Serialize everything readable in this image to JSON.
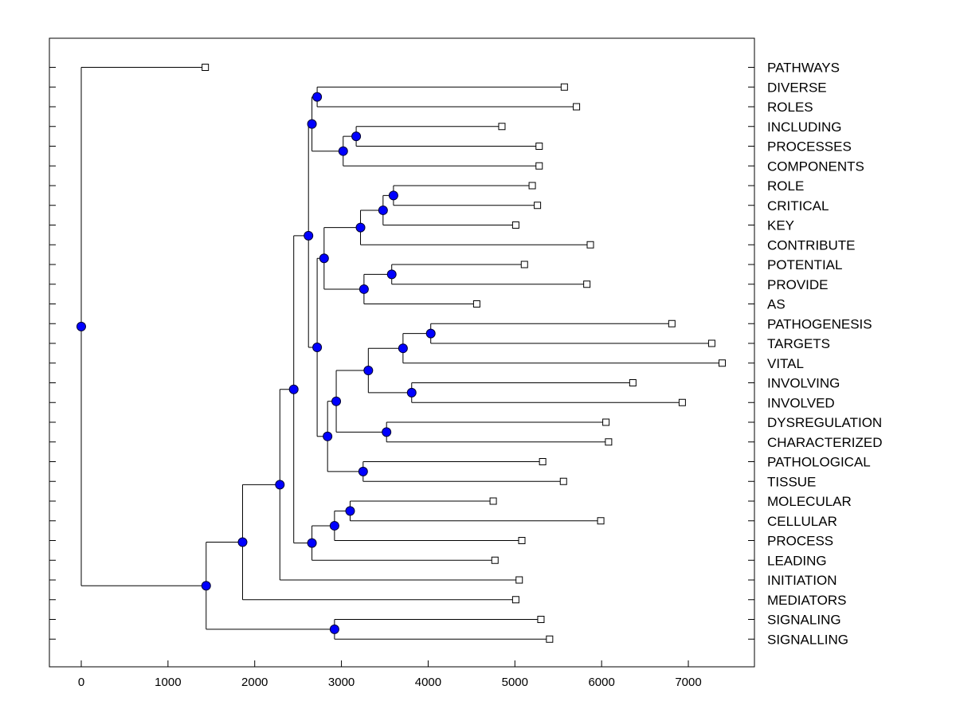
{
  "chart_data": {
    "type": "dendrogram",
    "x_ticks": [
      0,
      1000,
      2000,
      3000,
      4000,
      5000,
      6000,
      7000
    ],
    "x_tick_labels": [
      "0",
      "1000",
      "2000",
      "3000",
      "4000",
      "5000",
      "6000",
      "7000"
    ],
    "leaves": [
      {
        "label": "PATHWAYS",
        "end": 1430
      },
      {
        "label": "DIVERSE",
        "end": 5570
      },
      {
        "label": "ROLES",
        "end": 5710
      },
      {
        "label": "INCLUDING",
        "end": 4850
      },
      {
        "label": "PROCESSES",
        "end": 5280
      },
      {
        "label": "COMPONENTS",
        "end": 5280
      },
      {
        "label": "ROLE",
        "end": 5200
      },
      {
        "label": "CRITICAL",
        "end": 5260
      },
      {
        "label": "KEY",
        "end": 5010
      },
      {
        "label": "CONTRIBUTE",
        "end": 5870
      },
      {
        "label": "POTENTIAL",
        "end": 5110
      },
      {
        "label": "PROVIDE",
        "end": 5830
      },
      {
        "label": "AS",
        "end": 4560
      },
      {
        "label": "PATHOGENESIS",
        "end": 6810
      },
      {
        "label": "TARGETS",
        "end": 7270
      },
      {
        "label": "VITAL",
        "end": 7390
      },
      {
        "label": "INVOLVING",
        "end": 6360
      },
      {
        "label": "INVOLVED",
        "end": 6930
      },
      {
        "label": "DYSREGULATION",
        "end": 6050
      },
      {
        "label": "CHARACTERIZED",
        "end": 6080
      },
      {
        "label": "PATHOLOGICAL",
        "end": 5320
      },
      {
        "label": "TISSUE",
        "end": 5560
      },
      {
        "label": "MOLECULAR",
        "end": 4750
      },
      {
        "label": "CELLULAR",
        "end": 5990
      },
      {
        "label": "PROCESS",
        "end": 5080
      },
      {
        "label": "LEADING",
        "end": 4770
      },
      {
        "label": "INITIATION",
        "end": 5050
      },
      {
        "label": "MEDIATORS",
        "end": 5010
      },
      {
        "label": "SIGNALING",
        "end": 5300
      },
      {
        "label": "SIGNALLING",
        "end": 5400
      }
    ],
    "merges": [
      {
        "id": "n1",
        "x": 2720,
        "children": [
          "L1",
          "L2"
        ]
      },
      {
        "id": "n2",
        "x": 3170,
        "children": [
          "L3",
          "L4"
        ]
      },
      {
        "id": "n3",
        "x": 3020,
        "children": [
          "n2",
          "L5"
        ]
      },
      {
        "id": "n4",
        "x": 2660,
        "children": [
          "n1",
          "n3"
        ]
      },
      {
        "id": "n5",
        "x": 3600,
        "children": [
          "L6",
          "L7"
        ]
      },
      {
        "id": "n6",
        "x": 3480,
        "children": [
          "n5",
          "L8"
        ]
      },
      {
        "id": "n7",
        "x": 3220,
        "children": [
          "n6",
          "L9"
        ]
      },
      {
        "id": "n8",
        "x": 3580,
        "children": [
          "L10",
          "L11"
        ]
      },
      {
        "id": "n9",
        "x": 3260,
        "children": [
          "n8",
          "L12"
        ]
      },
      {
        "id": "n10",
        "x": 2800,
        "children": [
          "n7",
          "n9"
        ]
      },
      {
        "id": "n11",
        "x": 4030,
        "children": [
          "L13",
          "L14"
        ]
      },
      {
        "id": "n12",
        "x": 3710,
        "children": [
          "n11",
          "L15"
        ]
      },
      {
        "id": "n13",
        "x": 3810,
        "children": [
          "L16",
          "L17"
        ]
      },
      {
        "id": "n14",
        "x": 3310,
        "children": [
          "n12",
          "n13"
        ]
      },
      {
        "id": "n15",
        "x": 3520,
        "children": [
          "L18",
          "L19"
        ]
      },
      {
        "id": "n16",
        "x": 2940,
        "children": [
          "n14",
          "n15"
        ]
      },
      {
        "id": "n17",
        "x": 3250,
        "children": [
          "L20",
          "L21"
        ]
      },
      {
        "id": "n18",
        "x": 2840,
        "children": [
          "n16",
          "n17"
        ]
      },
      {
        "id": "n19",
        "x": 2720,
        "children": [
          "n10",
          "n18"
        ]
      },
      {
        "id": "n20",
        "x": 2620,
        "children": [
          "n4",
          "n19"
        ]
      },
      {
        "id": "n21",
        "x": 3100,
        "children": [
          "L22",
          "L23"
        ]
      },
      {
        "id": "n22",
        "x": 2920,
        "children": [
          "n21",
          "L24"
        ]
      },
      {
        "id": "n23",
        "x": 2660,
        "children": [
          "n22",
          "L25"
        ]
      },
      {
        "id": "n24",
        "x": 2450,
        "children": [
          "n20",
          "n23"
        ]
      },
      {
        "id": "n25",
        "x": 2290,
        "children": [
          "n24",
          "L26"
        ]
      },
      {
        "id": "n26",
        "x": 1860,
        "children": [
          "n25",
          "L27"
        ]
      },
      {
        "id": "n27",
        "x": 2920,
        "children": [
          "L28",
          "L29"
        ]
      },
      {
        "id": "n28",
        "x": 1440,
        "children": [
          "n26",
          "n27"
        ]
      },
      {
        "id": "n29",
        "x": 0,
        "children": [
          "L0",
          "n28"
        ]
      }
    ],
    "colors": {
      "line": "#000000",
      "node_fill": "#0000ff",
      "node_stroke": "#000033",
      "leaf_fill": "#ffffff"
    }
  }
}
